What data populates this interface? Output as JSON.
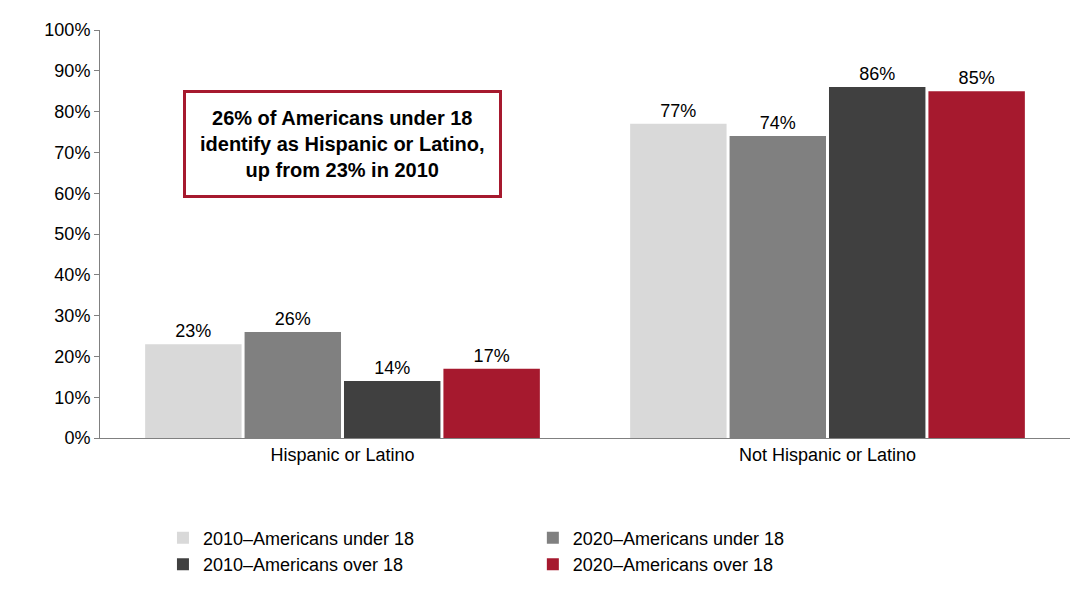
{
  "chart_data": {
    "type": "bar",
    "categories": [
      "Hispanic or Latino",
      "Not Hispanic or Latino"
    ],
    "series": [
      {
        "name": "2010–Americans under 18",
        "color": "#d9d9d9",
        "values": [
          23,
          77
        ],
        "value_labels": [
          "23%",
          "77%"
        ]
      },
      {
        "name": "2020–Americans under 18",
        "color": "#808080",
        "values": [
          26,
          74
        ],
        "value_labels": [
          "26%",
          "74%"
        ]
      },
      {
        "name": "2010–Americans over 18",
        "color": "#404040",
        "values": [
          14,
          86
        ],
        "value_labels": [
          "14%",
          "86%"
        ]
      },
      {
        "name": "2020–Americans over 18",
        "color": "#a6192e",
        "values": [
          17,
          85
        ],
        "value_labels": [
          "17%",
          "85%"
        ]
      }
    ],
    "ylim": [
      0,
      100
    ],
    "yticks": [
      {
        "value": 0,
        "label": "0%"
      },
      {
        "value": 10,
        "label": "10%"
      },
      {
        "value": 20,
        "label": "20%"
      },
      {
        "value": 30,
        "label": "30%"
      },
      {
        "value": 40,
        "label": "40%"
      },
      {
        "value": 50,
        "label": "50%"
      },
      {
        "value": 60,
        "label": "60%"
      },
      {
        "value": 70,
        "label": "70%"
      },
      {
        "value": 80,
        "label": "80%"
      },
      {
        "value": 90,
        "label": "90%"
      },
      {
        "value": 100,
        "label": "100%"
      }
    ],
    "grid": false,
    "legend": "bottom",
    "data_labels": true,
    "annotations": [
      {
        "text": "26% of Americans under 18\nidentify as Hispanic or Latino,\nup from 23% in 2010",
        "color": "#a6192e"
      }
    ]
  }
}
